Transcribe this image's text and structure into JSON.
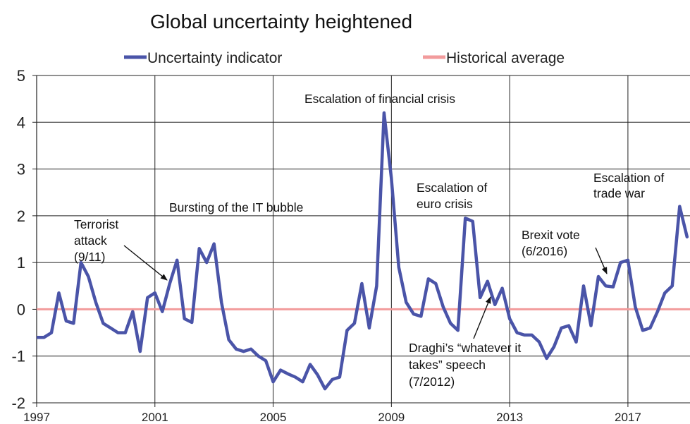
{
  "chart_data": {
    "type": "line",
    "title": "Global uncertainty heightened",
    "xlabel": "",
    "ylabel": "",
    "xlim": [
      1997,
      2019.1
    ],
    "ylim": [
      -2,
      5
    ],
    "y_ticks": [
      "5",
      "4",
      "3",
      "2",
      "1",
      "0",
      "-1",
      "-2"
    ],
    "x_ticks": [
      "1997",
      "2001",
      "2005",
      "2009",
      "2013",
      "2017"
    ],
    "grid": true,
    "legend_position": "top",
    "series": [
      {
        "name": "Uncertainty indicator",
        "color": "#4a54a8",
        "x": [
          1997.0,
          1997.25,
          1997.5,
          1997.75,
          1998.0,
          1998.25,
          1998.5,
          1998.75,
          1999.0,
          1999.25,
          1999.5,
          1999.75,
          2000.0,
          2000.25,
          2000.5,
          2000.75,
          2001.0,
          2001.25,
          2001.5,
          2001.75,
          2002.0,
          2002.25,
          2002.5,
          2002.75,
          2003.0,
          2003.25,
          2003.5,
          2003.75,
          2004.0,
          2004.25,
          2004.5,
          2004.75,
          2005.0,
          2005.25,
          2005.5,
          2005.75,
          2006.0,
          2006.25,
          2006.5,
          2006.75,
          2007.0,
          2007.25,
          2007.5,
          2007.75,
          2008.0,
          2008.25,
          2008.5,
          2008.75,
          2009.0,
          2009.25,
          2009.5,
          2009.75,
          2010.0,
          2010.25,
          2010.5,
          2010.75,
          2011.0,
          2011.25,
          2011.5,
          2011.75,
          2012.0,
          2012.25,
          2012.5,
          2012.75,
          2013.0,
          2013.25,
          2013.5,
          2013.75,
          2014.0,
          2014.25,
          2014.5,
          2014.75,
          2015.0,
          2015.25,
          2015.5,
          2015.75,
          2016.0,
          2016.25,
          2016.5,
          2016.75,
          2017.0,
          2017.25,
          2017.5,
          2017.75,
          2018.0,
          2018.25,
          2018.5,
          2018.75,
          2019.0
        ],
        "values": [
          -0.6,
          -0.6,
          -0.5,
          0.35,
          -0.25,
          -0.3,
          1.0,
          0.7,
          0.15,
          -0.3,
          -0.4,
          -0.5,
          -0.5,
          -0.05,
          -0.9,
          0.25,
          0.35,
          -0.05,
          0.55,
          1.05,
          -0.2,
          -0.28,
          1.3,
          1.0,
          1.4,
          0.15,
          -0.65,
          -0.85,
          -0.9,
          -0.85,
          -1.0,
          -1.1,
          -1.55,
          -1.3,
          -1.38,
          -1.45,
          -1.55,
          -1.18,
          -1.4,
          -1.7,
          -1.5,
          -1.45,
          -0.45,
          -0.3,
          0.55,
          -0.4,
          0.5,
          4.2,
          2.8,
          0.9,
          0.15,
          -0.1,
          -0.15,
          0.65,
          0.55,
          0.05,
          -0.3,
          -0.45,
          1.95,
          1.88,
          0.25,
          0.6,
          0.1,
          0.45,
          -0.2,
          -0.5,
          -0.55,
          -0.55,
          -0.7,
          -1.05,
          -0.8,
          -0.4,
          -0.35,
          -0.7,
          0.5,
          -0.35,
          0.7,
          0.5,
          0.48,
          1.0,
          1.05,
          0.05,
          -0.45,
          -0.4,
          -0.05,
          0.35,
          0.5,
          2.2,
          1.55
        ]
      },
      {
        "name": "Historical average",
        "color": "#f29b9c",
        "x": [
          1997,
          2019.1
        ],
        "values": [
          0,
          0
        ]
      }
    ],
    "annotations": [
      {
        "lines": [
          "Terrorist",
          "attack",
          "(9/11)"
        ]
      },
      {
        "lines": [
          "Bursting of the IT bubble"
        ]
      },
      {
        "lines": [
          "Escalation of financial crisis"
        ]
      },
      {
        "lines": [
          "Escalation of",
          "euro crisis"
        ]
      },
      {
        "lines": [
          "Draghi’s “whatever it",
          "takes” speech",
          "(7/2012)"
        ]
      },
      {
        "lines": [
          "Brexit vote",
          "(6/2016)"
        ]
      },
      {
        "lines": [
          "Escalation of",
          "trade war"
        ]
      }
    ]
  }
}
